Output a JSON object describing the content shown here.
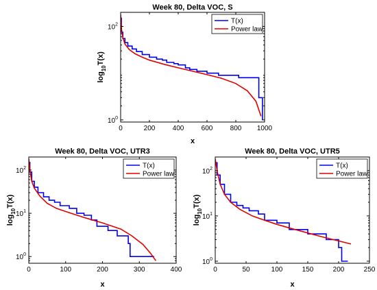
{
  "colors": {
    "series_t": "#0000ee",
    "series_power": "#e00000",
    "axes": "#000000",
    "background": "#ffffff"
  },
  "chart_data": [
    {
      "type": "line",
      "title": "Week 80, Delta VOC, S",
      "xlabel": "x",
      "ylabel": "log",
      "ylabel_sub": "10",
      "ylabel_tail": "T(x)",
      "yscale": "log",
      "xlim": [
        0,
        1000
      ],
      "ylim": [
        0.9,
        200
      ],
      "xticks": [
        0,
        200,
        400,
        600,
        800,
        1000
      ],
      "yticks": [
        {
          "value": 1,
          "mantissa": "10",
          "exp": "0"
        },
        {
          "value": 100,
          "mantissa": "10",
          "exp": "2"
        }
      ],
      "legend": {
        "position": "top-right",
        "entries": [
          "T(x)",
          "Power law"
        ]
      },
      "series": [
        {
          "name": "T(x)",
          "step": true,
          "points": [
            [
              0,
              150
            ],
            [
              5,
              75
            ],
            [
              15,
              55
            ],
            [
              30,
              45
            ],
            [
              50,
              38
            ],
            [
              80,
              33
            ],
            [
              110,
              29
            ],
            [
              150,
              25
            ],
            [
              200,
              22
            ],
            [
              250,
              20
            ],
            [
              290,
              19
            ],
            [
              320,
              17
            ],
            [
              370,
              16
            ],
            [
              400,
              15
            ],
            [
              450,
              13
            ],
            [
              480,
              12
            ],
            [
              530,
              11
            ],
            [
              600,
              10
            ],
            [
              680,
              9
            ],
            [
              820,
              8
            ],
            [
              960,
              3
            ],
            [
              985,
              1
            ]
          ]
        },
        {
          "name": "Power law",
          "step": false,
          "points": [
            [
              0,
              180
            ],
            [
              5,
              90
            ],
            [
              15,
              58
            ],
            [
              30,
              42
            ],
            [
              60,
              32
            ],
            [
              100,
              26
            ],
            [
              150,
              22
            ],
            [
              200,
              19
            ],
            [
              300,
              15.5
            ],
            [
              400,
              13
            ],
            [
              500,
              11
            ],
            [
              600,
              9.3
            ],
            [
              700,
              7.8
            ],
            [
              800,
              6
            ],
            [
              880,
              4.2
            ],
            [
              940,
              2.5
            ],
            [
              975,
              1.2
            ]
          ]
        }
      ]
    },
    {
      "type": "line",
      "title": "Week 80, Delta VOC, UTR3",
      "xlabel": "x",
      "ylabel": "log",
      "ylabel_sub": "10",
      "ylabel_tail": "T(x)",
      "yscale": "log",
      "xlim": [
        0,
        400
      ],
      "ylim": [
        0.7,
        200
      ],
      "xticks": [
        0,
        100,
        200,
        300,
        400
      ],
      "yticks": [
        {
          "value": 1,
          "mantissa": "10",
          "exp": "0"
        },
        {
          "value": 10,
          "mantissa": "10",
          "exp": "1"
        },
        {
          "value": 100,
          "mantissa": "10",
          "exp": "2"
        }
      ],
      "legend": {
        "position": "top-right",
        "entries": [
          "T(x)",
          "Power law"
        ]
      },
      "series": [
        {
          "name": "T(x)",
          "step": true,
          "points": [
            [
              0,
              150
            ],
            [
              3,
              90
            ],
            [
              8,
              55
            ],
            [
              15,
              40
            ],
            [
              25,
              30
            ],
            [
              40,
              24
            ],
            [
              55,
              20
            ],
            [
              70,
              18
            ],
            [
              85,
              15
            ],
            [
              110,
              13
            ],
            [
              130,
              10
            ],
            [
              150,
              9
            ],
            [
              170,
              7
            ],
            [
              185,
              5
            ],
            [
              215,
              4
            ],
            [
              240,
              3
            ],
            [
              270,
              2
            ],
            [
              275,
              1
            ],
            [
              340,
              1
            ]
          ]
        },
        {
          "name": "Power law",
          "step": false,
          "points": [
            [
              0,
              180
            ],
            [
              3,
              100
            ],
            [
              8,
              55
            ],
            [
              15,
              38
            ],
            [
              30,
              25
            ],
            [
              50,
              17
            ],
            [
              75,
              13
            ],
            [
              100,
              11
            ],
            [
              150,
              8
            ],
            [
              200,
              6
            ],
            [
              250,
              4.3
            ],
            [
              280,
              3
            ],
            [
              310,
              1.9
            ],
            [
              330,
              1.2
            ],
            [
              345,
              0.8
            ]
          ]
        }
      ]
    },
    {
      "type": "line",
      "title": "Week 80, Delta VOC, UTR5",
      "xlabel": "x",
      "ylabel": "log",
      "ylabel_sub": "10",
      "ylabel_tail": "T(x)",
      "yscale": "log",
      "xlim": [
        0,
        250
      ],
      "ylim": [
        0.9,
        200
      ],
      "xticks": [
        0,
        50,
        100,
        150,
        200,
        250
      ],
      "yticks": [
        {
          "value": 1,
          "mantissa": "10",
          "exp": "0"
        },
        {
          "value": 10,
          "mantissa": "10",
          "exp": "1"
        },
        {
          "value": 100,
          "mantissa": "10",
          "exp": "2"
        }
      ],
      "legend": {
        "position": "top-right",
        "entries": [
          "T(x)",
          "Power law"
        ]
      },
      "series": [
        {
          "name": "T(x)",
          "step": true,
          "points": [
            [
              0,
              150
            ],
            [
              3,
              80
            ],
            [
              8,
              50
            ],
            [
              15,
              30
            ],
            [
              25,
              20
            ],
            [
              35,
              17
            ],
            [
              45,
              15
            ],
            [
              55,
              13
            ],
            [
              70,
              11
            ],
            [
              80,
              8
            ],
            [
              100,
              7
            ],
            [
              120,
              5
            ],
            [
              150,
              4
            ],
            [
              180,
              3
            ],
            [
              200,
              2
            ],
            [
              205,
              1
            ],
            [
              215,
              1
            ]
          ]
        },
        {
          "name": "Power law",
          "step": false,
          "points": [
            [
              0,
              180
            ],
            [
              3,
              100
            ],
            [
              8,
              50
            ],
            [
              15,
              30
            ],
            [
              25,
              20
            ],
            [
              40,
              14
            ],
            [
              60,
              10
            ],
            [
              80,
              8
            ],
            [
              100,
              6.5
            ],
            [
              125,
              5.2
            ],
            [
              150,
              4.2
            ],
            [
              175,
              3.4
            ],
            [
              200,
              2.8
            ],
            [
              220,
              2.4
            ]
          ]
        }
      ]
    }
  ]
}
